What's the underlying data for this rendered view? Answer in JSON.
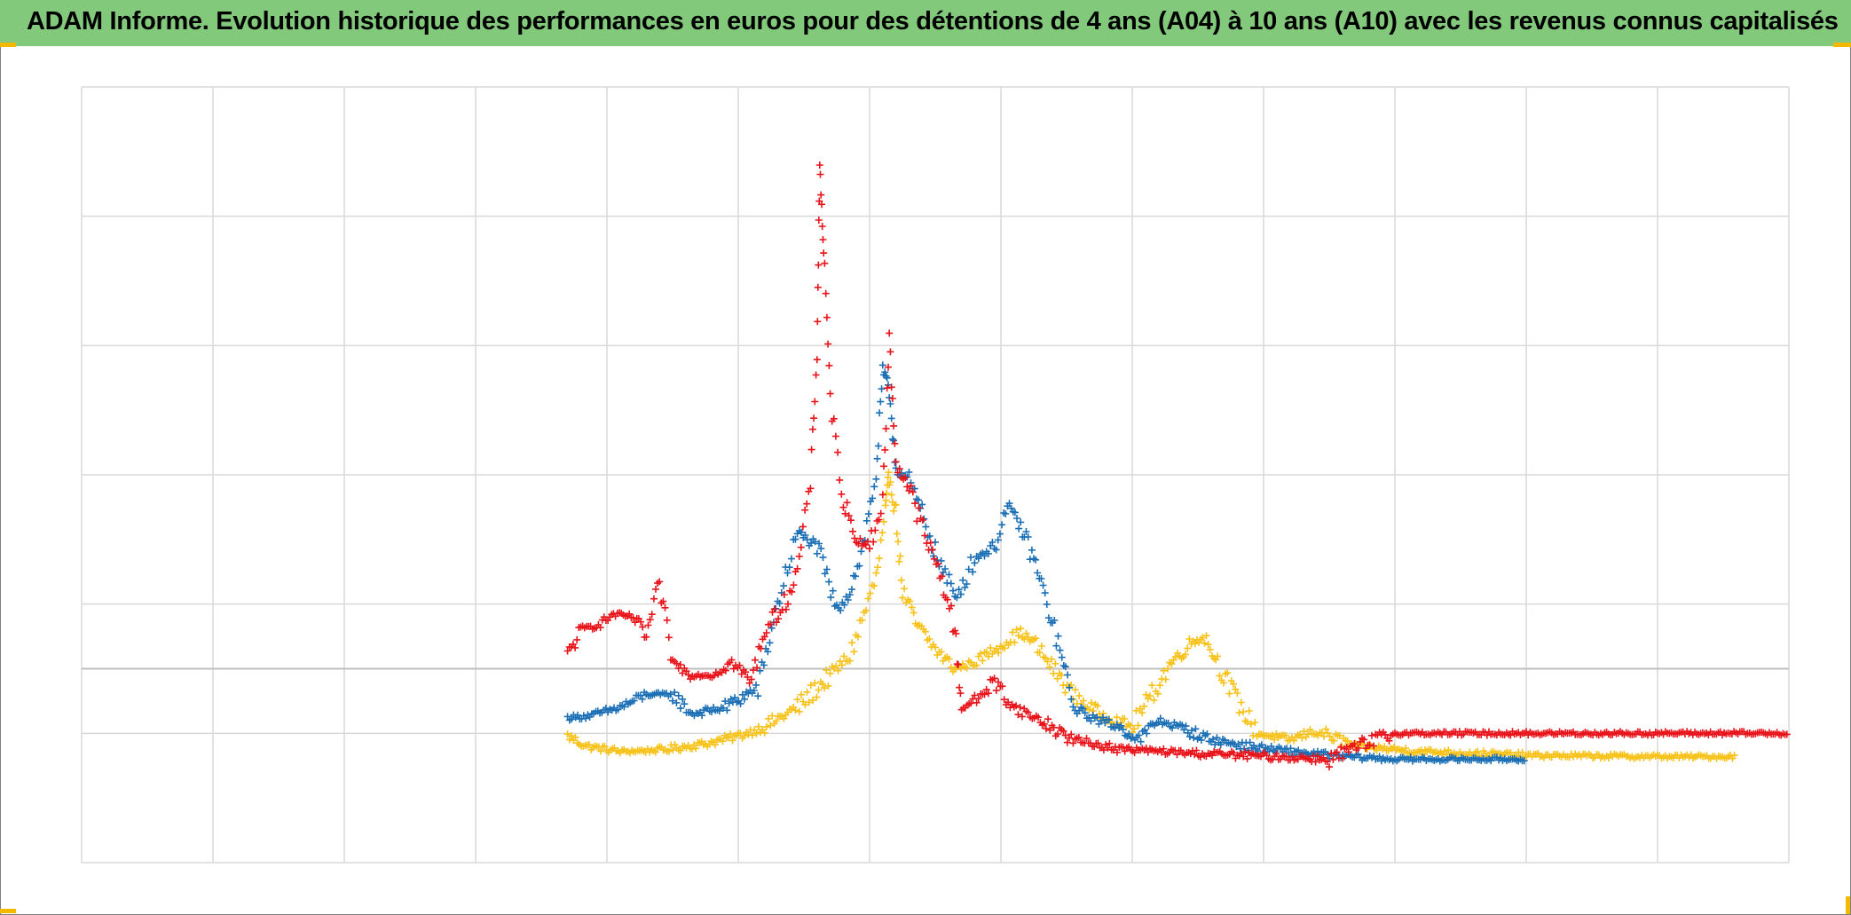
{
  "chart_data": {
    "type": "scatter",
    "title": "ADAM Informe. Evolution historique des performances en euros pour des détentions de 4 ans (A04) à 10 ans (A10) avec les revenus connus capitalisés",
    "marker": "+",
    "xlim": [
      0,
      13
    ],
    "ylim": [
      -1.5,
      4.5
    ],
    "baseline": 0,
    "grid": true,
    "colors": {
      "title_bar": "#82c97c",
      "red": "#e8141b",
      "blue": "#1b6fb5",
      "yellow": "#f7c21a",
      "grid": "#d9d9d9",
      "axis": "#bfbfbf"
    },
    "series": [
      {
        "color": "#f7c21a",
        "points": [
          [
            3.7,
            -0.52
          ],
          [
            3.85,
            -0.6
          ],
          [
            4.1,
            -0.64
          ],
          [
            4.4,
            -0.63
          ],
          [
            4.75,
            -0.58
          ],
          [
            5.0,
            -0.52
          ],
          [
            5.2,
            -0.45
          ],
          [
            5.45,
            -0.3
          ],
          [
            5.7,
            -0.05
          ],
          [
            5.85,
            0.1
          ],
          [
            6.05,
            0.7
          ],
          [
            6.12,
            1.2
          ],
          [
            6.15,
            1.5
          ],
          [
            6.2,
            1.2
          ],
          [
            6.25,
            0.6
          ],
          [
            6.35,
            0.35
          ],
          [
            6.5,
            0.15
          ],
          [
            6.65,
            0.0
          ],
          [
            6.8,
            0.05
          ],
          [
            6.95,
            0.15
          ],
          [
            7.15,
            0.28
          ],
          [
            7.25,
            0.2
          ],
          [
            7.4,
            0.0
          ],
          [
            7.55,
            -0.2
          ],
          [
            7.75,
            -0.35
          ],
          [
            8.0,
            -0.45
          ],
          [
            8.15,
            -0.2
          ],
          [
            8.3,
            0.05
          ],
          [
            8.45,
            0.2
          ],
          [
            8.55,
            0.25
          ],
          [
            8.65,
            0.05
          ],
          [
            8.8,
            -0.25
          ],
          [
            8.95,
            -0.5
          ],
          [
            9.2,
            -0.55
          ],
          [
            9.4,
            -0.48
          ],
          [
            9.7,
            -0.6
          ],
          [
            10.2,
            -0.64
          ],
          [
            11.0,
            -0.67
          ],
          [
            12.0,
            -0.68
          ],
          [
            12.6,
            -0.68
          ]
        ]
      },
      {
        "color": "#1b6fb5",
        "points": [
          [
            3.7,
            -0.38
          ],
          [
            3.9,
            -0.36
          ],
          [
            4.1,
            -0.3
          ],
          [
            4.3,
            -0.2
          ],
          [
            4.5,
            -0.2
          ],
          [
            4.65,
            -0.35
          ],
          [
            4.9,
            -0.3
          ],
          [
            5.15,
            -0.15
          ],
          [
            5.3,
            0.5
          ],
          [
            5.45,
            1.05
          ],
          [
            5.6,
            0.95
          ],
          [
            5.75,
            0.45
          ],
          [
            5.85,
            0.6
          ],
          [
            5.95,
            0.95
          ],
          [
            6.05,
            1.5
          ],
          [
            6.1,
            2.3
          ],
          [
            6.15,
            2.15
          ],
          [
            6.2,
            1.55
          ],
          [
            6.3,
            1.45
          ],
          [
            6.4,
            1.2
          ],
          [
            6.5,
            0.9
          ],
          [
            6.65,
            0.55
          ],
          [
            6.8,
            0.85
          ],
          [
            6.95,
            0.95
          ],
          [
            7.05,
            1.25
          ],
          [
            7.15,
            1.1
          ],
          [
            7.25,
            0.85
          ],
          [
            7.35,
            0.5
          ],
          [
            7.45,
            0.15
          ],
          [
            7.55,
            -0.3
          ],
          [
            7.7,
            -0.38
          ],
          [
            7.9,
            -0.45
          ],
          [
            8.05,
            -0.55
          ],
          [
            8.2,
            -0.4
          ],
          [
            8.35,
            -0.45
          ],
          [
            8.6,
            -0.55
          ],
          [
            9.0,
            -0.62
          ],
          [
            9.5,
            -0.67
          ],
          [
            10.0,
            -0.7
          ],
          [
            11.0,
            -0.7
          ]
        ]
      },
      {
        "color": "#e8141b",
        "points": [
          [
            3.7,
            0.1
          ],
          [
            3.8,
            0.3
          ],
          [
            3.95,
            0.35
          ],
          [
            4.05,
            0.42
          ],
          [
            4.2,
            0.4
          ],
          [
            4.3,
            0.25
          ],
          [
            4.4,
            0.65
          ],
          [
            4.5,
            0.05
          ],
          [
            4.65,
            -0.05
          ],
          [
            4.8,
            -0.05
          ],
          [
            4.95,
            0.05
          ],
          [
            5.1,
            -0.1
          ],
          [
            5.2,
            0.3
          ],
          [
            5.35,
            0.5
          ],
          [
            5.45,
            0.75
          ],
          [
            5.55,
            1.45
          ],
          [
            5.6,
            2.45
          ],
          [
            5.62,
            3.9
          ],
          [
            5.65,
            3.25
          ],
          [
            5.7,
            2.1
          ],
          [
            5.8,
            1.3
          ],
          [
            5.9,
            1.0
          ],
          [
            6.0,
            0.95
          ],
          [
            6.1,
            1.3
          ],
          [
            6.15,
            2.55
          ],
          [
            6.2,
            1.6
          ],
          [
            6.3,
            1.4
          ],
          [
            6.45,
            0.95
          ],
          [
            6.55,
            0.7
          ],
          [
            6.65,
            0.3
          ],
          [
            6.7,
            -0.3
          ],
          [
            6.8,
            -0.25
          ],
          [
            6.95,
            -0.1
          ],
          [
            7.1,
            -0.3
          ],
          [
            7.3,
            -0.4
          ],
          [
            7.55,
            -0.55
          ],
          [
            7.9,
            -0.62
          ],
          [
            8.4,
            -0.65
          ],
          [
            9.5,
            -0.7
          ],
          [
            10.0,
            -0.5
          ],
          [
            11.0,
            -0.5
          ],
          [
            12.0,
            -0.5
          ],
          [
            13.0,
            -0.5
          ]
        ]
      }
    ]
  }
}
